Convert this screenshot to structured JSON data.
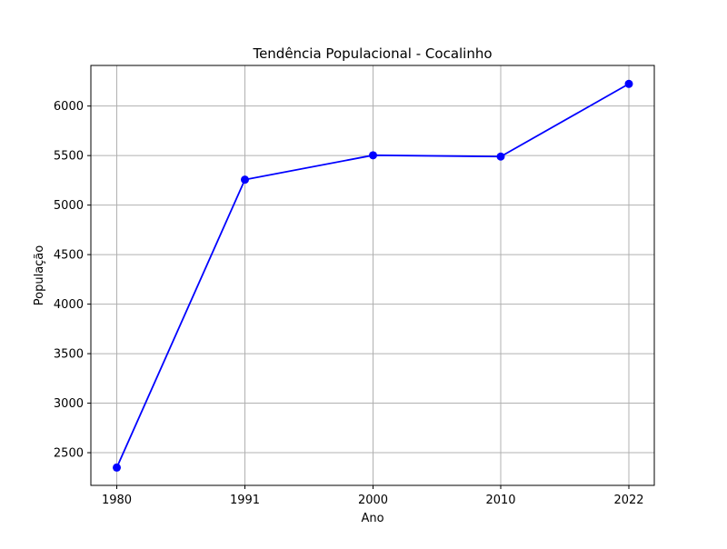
{
  "chart_data": {
    "type": "line",
    "title": "Tendência Populacional - Cocalinho",
    "xlabel": "Ano",
    "ylabel": "População",
    "categories": [
      "1980",
      "1991",
      "2000",
      "2010",
      "2022"
    ],
    "series": [
      {
        "values": [
          2350,
          5257,
          5503,
          5490,
          6224
        ],
        "color": "#0000ff",
        "marker": "circle"
      }
    ],
    "ylim": [
      2170,
      6410
    ],
    "yticks": [
      2500,
      3000,
      3500,
      4000,
      4500,
      5000,
      5500,
      6000
    ],
    "grid": true,
    "legend": "none"
  }
}
